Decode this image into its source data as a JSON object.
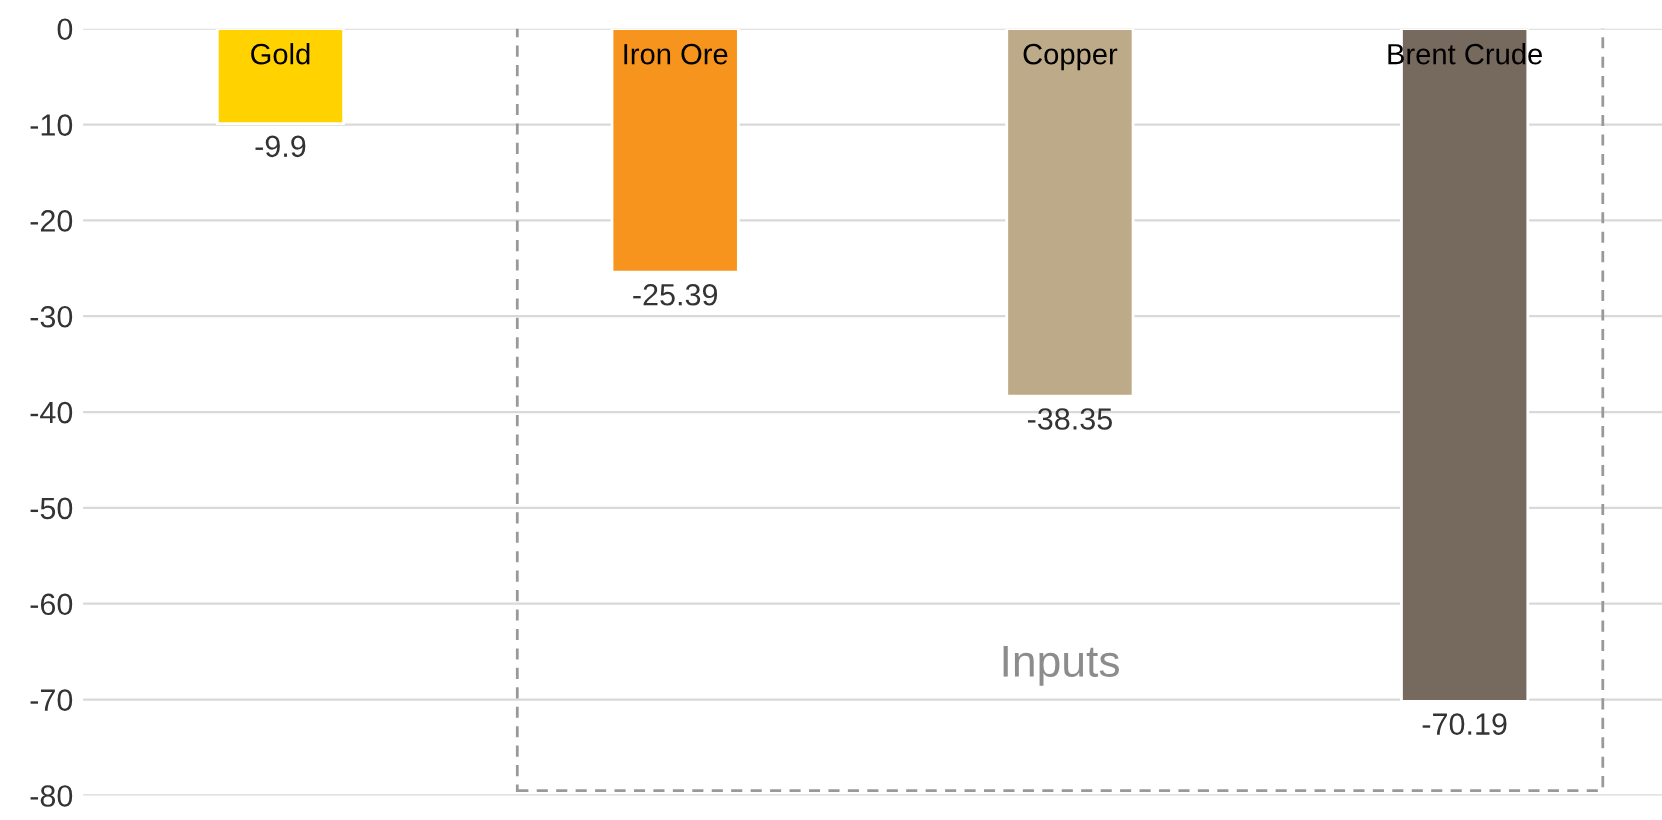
{
  "chart_data": {
    "type": "bar",
    "categories": [
      "Gold",
      "Iron Ore",
      "Copper",
      "Brent Crude"
    ],
    "values": [
      -9.9,
      -25.39,
      -38.35,
      -70.19
    ],
    "colors": [
      "#ffd200",
      "#f7941d",
      "#bcaa88",
      "#766a5e"
    ],
    "ylim": [
      -80,
      0
    ],
    "yticks": [
      -80,
      -70,
      -60,
      -50,
      -40,
      -30,
      -20,
      -10,
      0
    ],
    "grid": "y",
    "data_labels": true,
    "tick_labels": "y",
    "annotations": [
      "Inputs"
    ]
  }
}
